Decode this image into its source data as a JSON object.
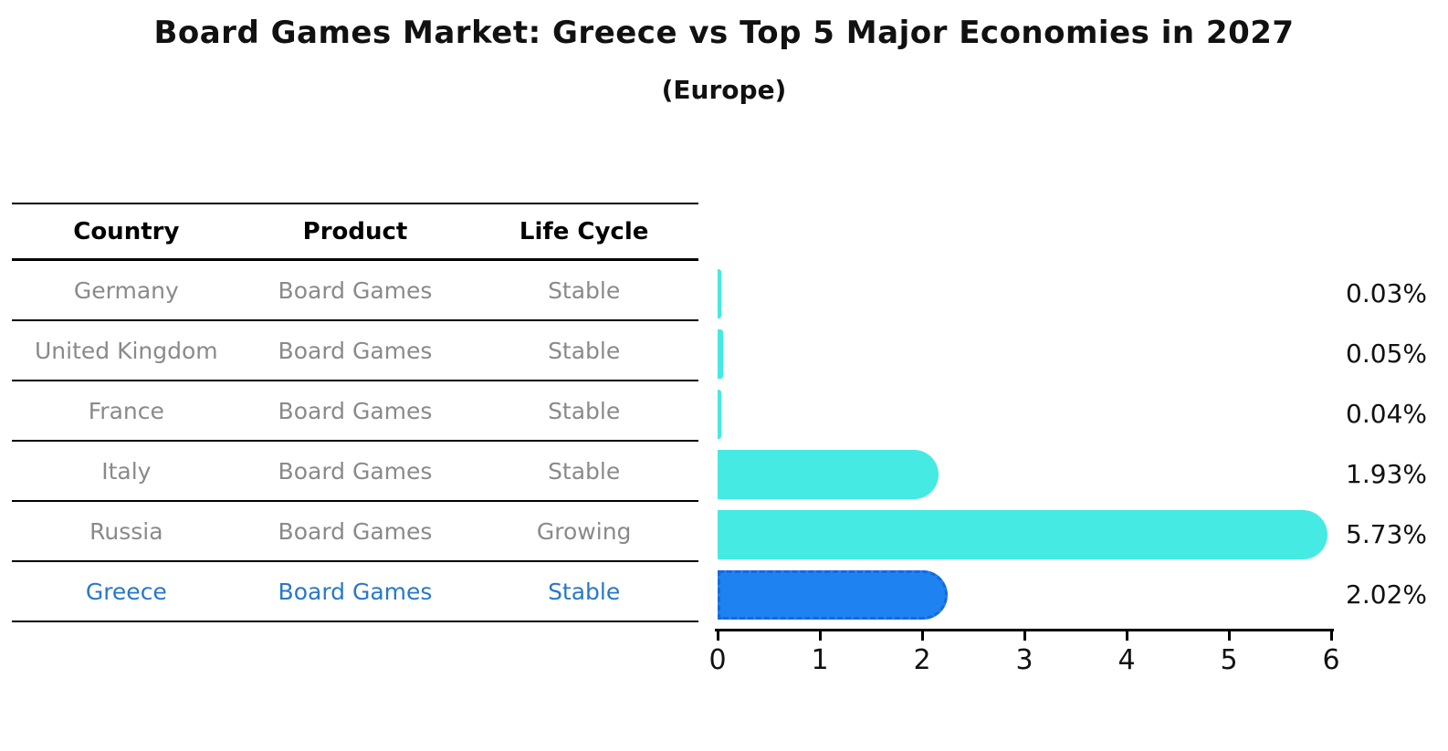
{
  "title": "Board Games Market: Greece vs Top 5 Major Economies in 2027",
  "subtitle": "(Europe)",
  "table": {
    "headers": [
      "Country",
      "Product",
      "Life Cycle"
    ],
    "rows": [
      {
        "country": "Germany",
        "product": "Board Games",
        "life_cycle": "Stable",
        "highlight": false
      },
      {
        "country": "United Kingdom",
        "product": "Board Games",
        "life_cycle": "Stable",
        "highlight": false
      },
      {
        "country": "France",
        "product": "Board Games",
        "life_cycle": "Stable",
        "highlight": false
      },
      {
        "country": "Italy",
        "product": "Board Games",
        "life_cycle": "Stable",
        "highlight": false
      },
      {
        "country": "Russia",
        "product": "Board Games",
        "life_cycle": "Growing",
        "highlight": false
      },
      {
        "country": "Greece",
        "product": "Board Games",
        "life_cycle": "Stable",
        "highlight": true
      }
    ]
  },
  "chart_data": {
    "type": "bar",
    "orientation": "horizontal",
    "title": "Board Games Market: Greece vs Top 5 Major Economies in 2027",
    "subtitle": "(Europe)",
    "categories": [
      "Germany",
      "United Kingdom",
      "France",
      "Italy",
      "Russia",
      "Greece"
    ],
    "values": [
      0.03,
      0.05,
      0.04,
      1.93,
      5.73,
      2.02
    ],
    "value_labels": [
      "0.03%",
      "0.05%",
      "0.04%",
      "1.93%",
      "5.73%",
      "2.02%"
    ],
    "xlim": [
      0,
      6
    ],
    "xticks": [
      0,
      1,
      2,
      3,
      4,
      5,
      6
    ],
    "grid": false,
    "legend": false,
    "highlight_index": 5
  },
  "colors": {
    "bar_color": "#45EAE2",
    "highlight_bar_color": "#1E82F0",
    "highlight_bar_border": "#1668E0",
    "highlight_text": "#2878C8",
    "muted_text": "#8a8a8a",
    "text": "#111111"
  }
}
